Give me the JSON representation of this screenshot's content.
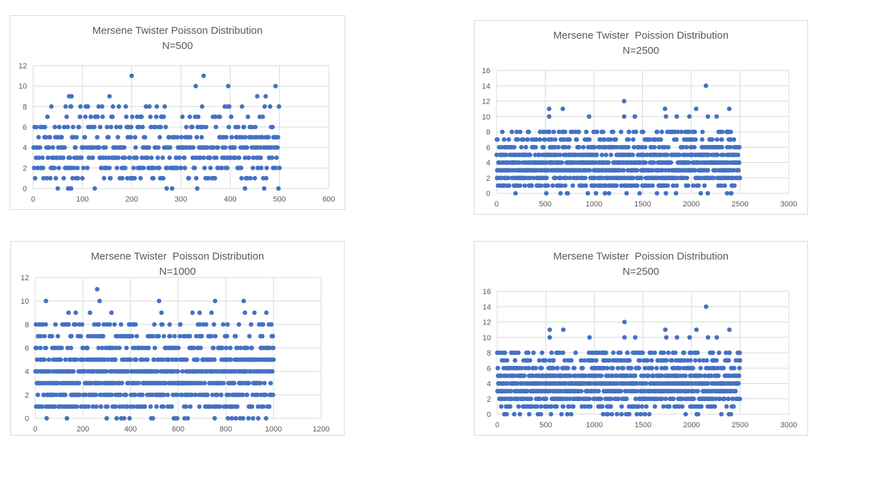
{
  "colors": {
    "marker": "#4472c4",
    "grid": "#d9d9d9",
    "text": "#595959",
    "border": "#d9d9d9"
  },
  "chart_data": [
    {
      "type": "scatter",
      "title": "Mersene Twister Poisson Distribution",
      "subtitle": "N=500",
      "xlim": [
        0,
        600
      ],
      "xticks": [
        0,
        100,
        200,
        300,
        400,
        500,
        600
      ],
      "ylim": [
        0,
        12
      ],
      "yticks": [
        0,
        2,
        4,
        6,
        8,
        10,
        12
      ],
      "grid": true,
      "n_points": 500,
      "y_values_present": [
        0,
        1,
        2,
        3,
        4,
        5,
        6,
        7,
        8,
        9,
        10,
        11
      ],
      "outliers": [
        {
          "x": 50,
          "y": 0
        },
        {
          "x": 77,
          "y": 0
        },
        {
          "x": 430,
          "y": 0
        },
        {
          "x": 73,
          "y": 9
        },
        {
          "x": 78,
          "y": 9
        },
        {
          "x": 155,
          "y": 9
        },
        {
          "x": 455,
          "y": 9
        },
        {
          "x": 472,
          "y": 9
        },
        {
          "x": 330,
          "y": 10
        },
        {
          "x": 396,
          "y": 10
        },
        {
          "x": 492,
          "y": 10
        },
        {
          "x": 200,
          "y": 11
        },
        {
          "x": 346,
          "y": 11
        }
      ]
    },
    {
      "type": "scatter",
      "title": "Mersene Twister  Poission Distribution",
      "subtitle": "N=2500",
      "xlim": [
        0,
        3000
      ],
      "xticks": [
        0,
        500,
        1000,
        1500,
        2000,
        2500,
        3000
      ],
      "ylim": [
        0,
        16
      ],
      "yticks": [
        0,
        2,
        4,
        6,
        8,
        10,
        12,
        14,
        16
      ],
      "grid": true,
      "n_points": 2500,
      "y_values_present": [
        0,
        1,
        2,
        3,
        4,
        5,
        6,
        7,
        8,
        9,
        10,
        11,
        12,
        14
      ],
      "outliers": [
        {
          "x": 2150,
          "y": 14
        },
        {
          "x": 1310,
          "y": 12
        },
        {
          "x": 540,
          "y": 11
        },
        {
          "x": 680,
          "y": 11
        },
        {
          "x": 1730,
          "y": 11
        },
        {
          "x": 2050,
          "y": 11
        },
        {
          "x": 2390,
          "y": 11
        },
        {
          "x": 540,
          "y": 10
        },
        {
          "x": 950,
          "y": 10
        },
        {
          "x": 1310,
          "y": 10
        },
        {
          "x": 1420,
          "y": 10
        },
        {
          "x": 1740,
          "y": 10
        },
        {
          "x": 1850,
          "y": 10
        },
        {
          "x": 1980,
          "y": 10
        },
        {
          "x": 2170,
          "y": 10
        },
        {
          "x": 2260,
          "y": 10
        }
      ]
    },
    {
      "type": "scatter",
      "title": "Mersene Twister  Poisson Distribution",
      "subtitle": "N=1000",
      "xlim": [
        0,
        1200
      ],
      "xticks": [
        0,
        200,
        400,
        600,
        800,
        1000,
        1200
      ],
      "ylim": [
        0,
        12
      ],
      "yticks": [
        0,
        2,
        4,
        6,
        8,
        10,
        12
      ],
      "grid": true,
      "n_points": 1000,
      "y_values_present": [
        0,
        1,
        2,
        3,
        4,
        5,
        6,
        7,
        8,
        9,
        10,
        11
      ],
      "outliers": [
        {
          "x": 260,
          "y": 11
        },
        {
          "x": 45,
          "y": 10
        },
        {
          "x": 270,
          "y": 10
        },
        {
          "x": 520,
          "y": 10
        },
        {
          "x": 755,
          "y": 10
        },
        {
          "x": 875,
          "y": 10
        },
        {
          "x": 140,
          "y": 9
        },
        {
          "x": 170,
          "y": 9
        },
        {
          "x": 230,
          "y": 9
        },
        {
          "x": 320,
          "y": 9
        },
        {
          "x": 530,
          "y": 9
        },
        {
          "x": 660,
          "y": 9
        },
        {
          "x": 690,
          "y": 9
        },
        {
          "x": 740,
          "y": 9
        },
        {
          "x": 880,
          "y": 9
        },
        {
          "x": 920,
          "y": 9
        },
        {
          "x": 970,
          "y": 9
        }
      ]
    },
    {
      "type": "scatter",
      "title": "Mersene Twister  Poission Distribution",
      "subtitle": "N=2500",
      "xlim": [
        0,
        3000
      ],
      "xticks": [
        0,
        500,
        1000,
        1500,
        2000,
        2500,
        3000
      ],
      "ylim": [
        0,
        16
      ],
      "yticks": [
        0,
        2,
        4,
        6,
        8,
        10,
        12,
        14,
        16
      ],
      "grid": true,
      "n_points": 2500,
      "y_values_present": [
        0,
        1,
        2,
        3,
        4,
        5,
        6,
        7,
        8,
        9,
        10,
        11,
        12,
        14
      ],
      "outliers": [
        {
          "x": 2150,
          "y": 14
        },
        {
          "x": 1310,
          "y": 12
        },
        {
          "x": 540,
          "y": 11
        },
        {
          "x": 680,
          "y": 11
        },
        {
          "x": 1730,
          "y": 11
        },
        {
          "x": 2050,
          "y": 11
        },
        {
          "x": 2390,
          "y": 11
        },
        {
          "x": 540,
          "y": 10
        },
        {
          "x": 950,
          "y": 10
        },
        {
          "x": 1310,
          "y": 10
        },
        {
          "x": 1420,
          "y": 10
        },
        {
          "x": 1740,
          "y": 10
        },
        {
          "x": 1850,
          "y": 10
        },
        {
          "x": 1980,
          "y": 10
        },
        {
          "x": 2170,
          "y": 10
        },
        {
          "x": 2260,
          "y": 10
        }
      ]
    }
  ]
}
